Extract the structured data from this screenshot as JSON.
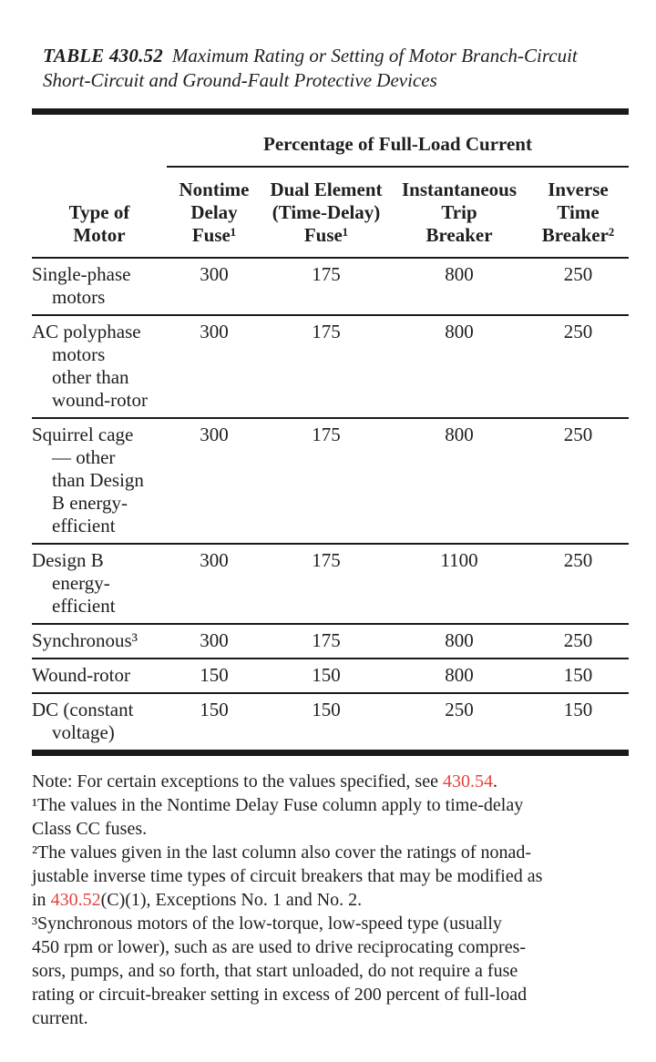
{
  "title": {
    "label": "TABLE 430.52",
    "text": "Maximum Rating or Setting of Motor Branch-Circuit Short-Circuit and Ground-Fault Protective Devices"
  },
  "table": {
    "spanner_header": "Percentage of Full-Load Current",
    "columns": [
      {
        "lines": [
          "Type of",
          "Motor"
        ]
      },
      {
        "lines": [
          "Nontime",
          "Delay",
          "Fuse¹"
        ]
      },
      {
        "lines": [
          "Dual Element",
          "(Time-Delay)",
          "Fuse¹"
        ]
      },
      {
        "lines": [
          "Instantaneous",
          "Trip",
          "Breaker"
        ]
      },
      {
        "lines": [
          "Inverse",
          "Time",
          "Breaker²"
        ]
      }
    ],
    "rows": [
      {
        "label_lines": [
          "Single-phase",
          "motors"
        ],
        "values": [
          "300",
          "175",
          "800",
          "250"
        ]
      },
      {
        "label_lines": [
          "AC polyphase",
          "motors",
          "other than",
          "wound-rotor"
        ],
        "values": [
          "300",
          "175",
          "800",
          "250"
        ]
      },
      {
        "label_lines": [
          "Squirrel cage",
          "— other",
          "than Design",
          "B energy-",
          "efficient"
        ],
        "values": [
          "300",
          "175",
          "800",
          "250"
        ]
      },
      {
        "label_lines": [
          "Design B",
          "energy-",
          "efficient"
        ],
        "values": [
          "300",
          "175",
          "1100",
          "250"
        ]
      },
      {
        "label_lines": [
          "Synchronous³"
        ],
        "values": [
          "300",
          "175",
          "800",
          "250"
        ]
      },
      {
        "label_lines": [
          "Wound-rotor"
        ],
        "values": [
          "150",
          "150",
          "800",
          "150"
        ]
      },
      {
        "label_lines": [
          "DC (constant",
          "voltage)"
        ],
        "values": [
          "150",
          "150",
          "250",
          "150"
        ]
      }
    ]
  },
  "notes": [
    {
      "lines": [
        [
          {
            "t": "Note: For certain exceptions to the values specified, see "
          },
          {
            "t": "430.54",
            "red": true
          },
          {
            "t": "."
          }
        ]
      ]
    },
    {
      "lines": [
        [
          {
            "t": "¹The values in the Nontime Delay Fuse column apply to time-delay"
          }
        ],
        [
          {
            "t": "Class CC fuses."
          }
        ]
      ]
    },
    {
      "lines": [
        [
          {
            "t": "²The values given in the last column also cover the ratings of nonad-"
          }
        ],
        [
          {
            "t": "justable inverse time types of circuit breakers that may be modified as"
          }
        ],
        [
          {
            "t": "in "
          },
          {
            "t": "430.52",
            "red": true
          },
          {
            "t": "(C)(1), Exceptions No. 1 and No. 2."
          }
        ]
      ]
    },
    {
      "lines": [
        [
          {
            "t": "³Synchronous motors of the low-torque, low-speed type (usually"
          }
        ],
        [
          {
            "t": "450 rpm or lower), such as are used to drive reciprocating compres-"
          }
        ],
        [
          {
            "t": "sors, pumps, and so forth, that start unloaded, do not require a fuse"
          }
        ],
        [
          {
            "t": "rating or circuit-breaker setting in excess of 200 percent of full-load"
          }
        ],
        [
          {
            "t": "current."
          }
        ]
      ]
    }
  ],
  "colors": {
    "text": "#201d1d",
    "rule": "#1a1a1a",
    "reference_red": "#e8403c"
  }
}
